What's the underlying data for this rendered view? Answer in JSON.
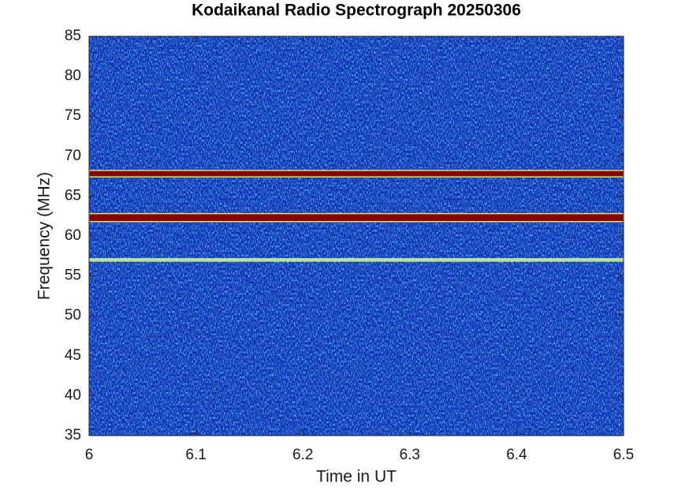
{
  "chart_data": {
    "type": "spectrogram",
    "title": "Kodaikanal Radio Spectrograph  20250306",
    "xlabel": "Time in UT",
    "ylabel": "Frequency (MHz)",
    "xlim": [
      6,
      6.5
    ],
    "xticks": [
      6,
      6.1,
      6.2,
      6.3,
      6.4,
      6.5
    ],
    "ylim": [
      35,
      85
    ],
    "yticks": [
      35,
      40,
      45,
      50,
      55,
      60,
      65,
      70,
      75,
      80,
      85
    ],
    "background": "#0c2fb2",
    "bands": [
      {
        "frequency": 67.8,
        "width": 0.8,
        "color": "#8b0000"
      },
      {
        "frequency": 62.3,
        "width": 1.0,
        "color": "#8b0000"
      },
      {
        "frequency": 57.0,
        "width": 0.3,
        "color": "#7fe6ff"
      }
    ]
  }
}
